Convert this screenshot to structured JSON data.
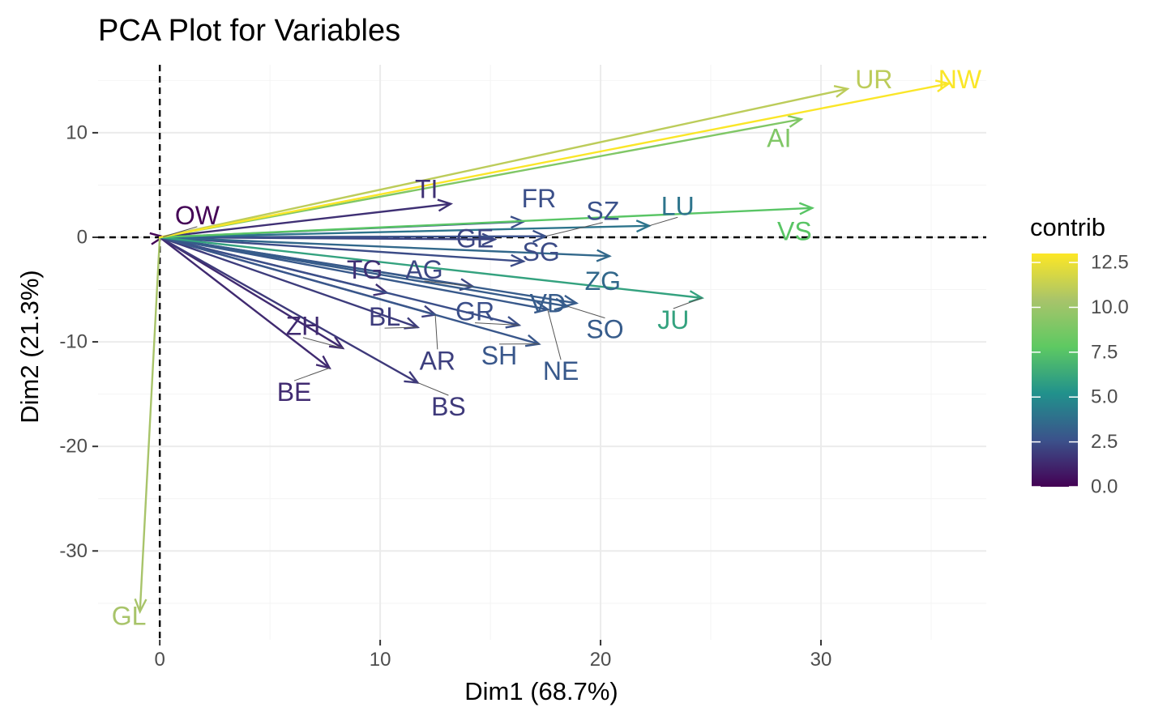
{
  "chart_data": {
    "type": "scatter",
    "subtype": "pca-variable-biplot",
    "title": "PCA Plot for Variables",
    "xlabel": "Dim1 (68.7%)",
    "ylabel": "Dim2 (21.3%)",
    "xlim": [
      -2.8,
      37.5
    ],
    "ylim": [
      -38.5,
      16.5
    ],
    "x_ticks": [
      0,
      10,
      20,
      30
    ],
    "y_ticks": [
      -30,
      -20,
      -10,
      0,
      10
    ],
    "grid": true,
    "reference_lines": {
      "x": 0,
      "y": 0,
      "style": "dashed"
    },
    "legend": {
      "title": "contrib",
      "position": "right",
      "range": [
        0,
        13.0
      ],
      "ticks": [
        "0.0",
        "2.5",
        "5.0",
        "7.5",
        "10.0",
        "12.5"
      ],
      "palette": [
        "#440154",
        "#3b528b",
        "#21918c",
        "#5ec962",
        "#a8c46a",
        "#fde725"
      ]
    },
    "variables": [
      {
        "name": "UR",
        "x": 31.2,
        "y": 14.2,
        "contrib": 11.0,
        "label_x": 32.4,
        "label_y": 15.1
      },
      {
        "name": "NW",
        "x": 35.8,
        "y": 14.7,
        "contrib": 12.9,
        "label_x": 36.3,
        "label_y": 15.1
      },
      {
        "name": "AI",
        "x": 29.1,
        "y": 11.3,
        "contrib": 9.0,
        "label_x": 28.1,
        "label_y": 9.5
      },
      {
        "name": "TI",
        "x": 13.2,
        "y": 3.2,
        "contrib": 1.5,
        "label_x": 12.1,
        "label_y": 4.6
      },
      {
        "name": "OW",
        "x": 0.15,
        "y": 0.05,
        "contrib": 0.1,
        "label_x": 1.7,
        "label_y": 2.1
      },
      {
        "name": "FR",
        "x": 16.5,
        "y": 1.5,
        "contrib": 2.5,
        "label_x": 17.2,
        "label_y": 3.7
      },
      {
        "name": "SZ",
        "x": 17.5,
        "y": 0.1,
        "contrib": 2.6,
        "label_x": 20.1,
        "label_y": 2.5
      },
      {
        "name": "LU",
        "x": 22.2,
        "y": 1.1,
        "contrib": 4.0,
        "label_x": 23.5,
        "label_y": 3.0
      },
      {
        "name": "VS",
        "x": 29.6,
        "y": 2.8,
        "contrib": 7.6,
        "label_x": 28.8,
        "label_y": 0.6
      },
      {
        "name": "GE",
        "x": 15.2,
        "y": -0.2,
        "contrib": 2.2,
        "label_x": 14.3,
        "label_y": -0.1
      },
      {
        "name": "SG",
        "x": 16.5,
        "y": -2.3,
        "contrib": 2.4,
        "label_x": 17.3,
        "label_y": -1.4
      },
      {
        "name": "ZG",
        "x": 20.4,
        "y": -1.8,
        "contrib": 3.5,
        "label_x": 20.1,
        "label_y": -4.2
      },
      {
        "name": "JU",
        "x": 24.6,
        "y": -5.8,
        "contrib": 6.0,
        "label_x": 23.3,
        "label_y": -7.9
      },
      {
        "name": "TG",
        "x": 10.3,
        "y": -5.3,
        "contrib": 1.5,
        "label_x": 9.3,
        "label_y": -3.1
      },
      {
        "name": "AG",
        "x": 14.2,
        "y": -4.7,
        "contrib": 2.2,
        "label_x": 12.0,
        "label_y": -3.1
      },
      {
        "name": "VD",
        "x": 18.9,
        "y": -6.3,
        "contrib": 3.0,
        "label_x": 17.6,
        "label_y": -6.3
      },
      {
        "name": "BL",
        "x": 11.7,
        "y": -8.6,
        "contrib": 1.9,
        "label_x": 10.2,
        "label_y": -7.6
      },
      {
        "name": "GR",
        "x": 16.3,
        "y": -8.4,
        "contrib": 2.5,
        "label_x": 14.3,
        "label_y": -7.1
      },
      {
        "name": "AR",
        "x": 12.5,
        "y": -7.4,
        "contrib": 2.0,
        "label_x": 12.6,
        "label_y": -11.8
      },
      {
        "name": "SH",
        "x": 17.2,
        "y": -10.2,
        "contrib": 2.8,
        "label_x": 15.4,
        "label_y": -11.3
      },
      {
        "name": "SO",
        "x": 18.5,
        "y": -6.6,
        "contrib": 3.0,
        "label_x": 20.2,
        "label_y": -8.8
      },
      {
        "name": "NE",
        "x": 17.6,
        "y": -6.9,
        "contrib": 2.9,
        "label_x": 18.2,
        "label_y": -12.8
      },
      {
        "name": "ZH",
        "x": 8.3,
        "y": -10.6,
        "contrib": 1.3,
        "label_x": 6.5,
        "label_y": -8.5
      },
      {
        "name": "BE",
        "x": 7.7,
        "y": -12.5,
        "contrib": 1.3,
        "label_x": 6.1,
        "label_y": -14.8
      },
      {
        "name": "BS",
        "x": 11.7,
        "y": -13.9,
        "contrib": 1.8,
        "label_x": 13.1,
        "label_y": -16.2
      },
      {
        "name": "GL",
        "x": -0.9,
        "y": -35.8,
        "contrib": 10.4,
        "label_x": -1.4,
        "label_y": -36.2
      }
    ]
  }
}
